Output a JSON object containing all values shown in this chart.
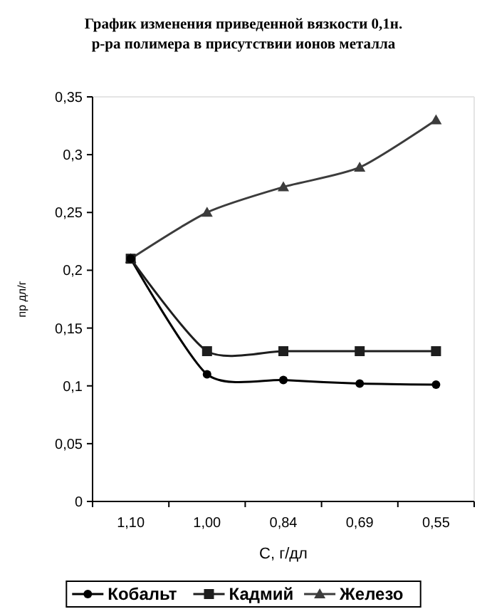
{
  "chart_data": {
    "type": "line",
    "title": "График изменения приведенной вязкости  0,1н.\nр-ра полимера в присутствии ионов металла",
    "xlabel": "C, г/дл",
    "ylabel": "пр дл/г",
    "categories": [
      "1,10",
      "1,00",
      "0,84",
      "0,69",
      "0,55"
    ],
    "series": [
      {
        "name": "Кобальт",
        "color": "#000000",
        "marker": "circle",
        "values": [
          0.21,
          0.11,
          0.105,
          0.102,
          0.101
        ]
      },
      {
        "name": "Кадмий",
        "color": "#1e1e1e",
        "marker": "square",
        "values": [
          0.21,
          0.13,
          0.13,
          0.13,
          0.13
        ]
      },
      {
        "name": "Железо",
        "color": "#3c3c3c",
        "marker": "triangle",
        "values": [
          0.21,
          0.25,
          0.272,
          0.289,
          0.33
        ]
      }
    ],
    "ylim": [
      0,
      0.35
    ],
    "yticks": [
      {
        "value": 0,
        "label": "0"
      },
      {
        "value": 0.05,
        "label": "0,05"
      },
      {
        "value": 0.1,
        "label": "0,1"
      },
      {
        "value": 0.15,
        "label": "0,15"
      },
      {
        "value": 0.2,
        "label": "0,2"
      },
      {
        "value": 0.25,
        "label": "0,25"
      },
      {
        "value": 0.3,
        "label": "0,3"
      },
      {
        "value": 0.35,
        "label": "0,35"
      }
    ],
    "grid": false,
    "legend": "bottom",
    "line_style": "solid"
  }
}
